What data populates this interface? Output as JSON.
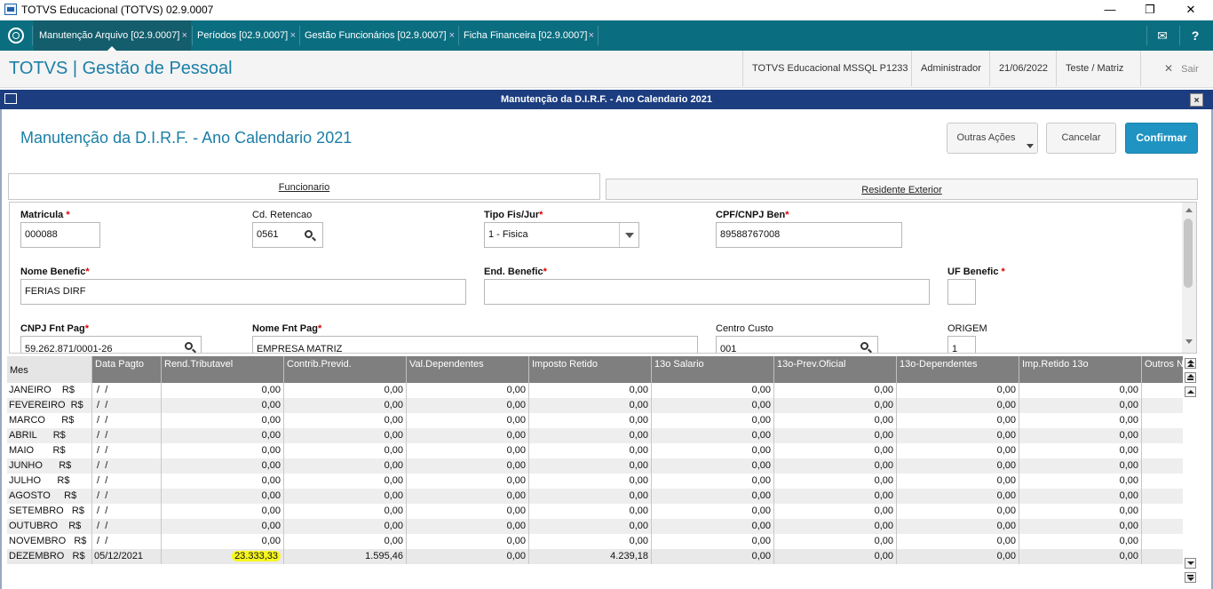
{
  "window": {
    "title": "TOTVS Educacional (TOTVS) 02.9.0007",
    "minimize": "—",
    "restore": "❐",
    "close": "✕"
  },
  "tabs": [
    {
      "label": "Manutenção Arquivo [02.9.0007]",
      "close": "×"
    },
    {
      "label": "Períodos [02.9.0007]",
      "close": "×"
    },
    {
      "label": "Gestão Funcionários [02.9.0007]",
      "close": "×"
    },
    {
      "label": "Ficha Financeira [02.9.0007]",
      "close": "×"
    }
  ],
  "topbar_icons": {
    "mail": "✉",
    "help": "?"
  },
  "header": {
    "brand": "TOTVS | Gestão de Pessoal",
    "environment": "TOTVS Educacional MSSQL P1233",
    "user": "Administrador",
    "date": "21/06/2022",
    "branch": "Teste / Matriz",
    "exit_label": "Sair",
    "exit_icon": "✕"
  },
  "dialog": {
    "title": "Manutenção da D.I.R.F. - Ano Calendario 2021",
    "page_title": "Manutenção da D.I.R.F. - Ano Calendario 2021",
    "close": "×",
    "buttons": {
      "other_actions": "Outras Ações",
      "cancel": "Cancelar",
      "confirm": "Confirmar"
    },
    "folder_tabs": [
      "Funcionario",
      "Residente Exterior"
    ]
  },
  "form": {
    "matricula": {
      "label": "Matricula",
      "required": "*",
      "value": "000088"
    },
    "cd_retencao": {
      "label": "Cd. Retencao",
      "value": "0561"
    },
    "tipo_fis_jur": {
      "label": "Tipo Fis/Jur",
      "required": "*",
      "value": "1 - Fisica"
    },
    "cpf_cnpj": {
      "label": "CPF/CNPJ Ben",
      "required": "*",
      "value": "89588767008"
    },
    "nome_benefic": {
      "label": "Nome Benefic",
      "required": "*",
      "value": "FERIAS DIRF"
    },
    "end_benefic": {
      "label": "End. Benefic",
      "required": "*",
      "value": ""
    },
    "uf_benefic": {
      "label": "UF Benefic",
      "required": "*",
      "value": ""
    },
    "cnpj_fnt_pag": {
      "label": "CNPJ Fnt Pag",
      "required": "*",
      "value": "59.262.871/0001-26"
    },
    "nome_fnt_pag": {
      "label": "Nome Fnt Pag",
      "required": "*",
      "value": "EMPRESA MATRIZ"
    },
    "centro_custo": {
      "label": "Centro Custo",
      "value": "001"
    },
    "origem": {
      "label": "ORIGEM",
      "value": "1"
    }
  },
  "grid": {
    "columns": [
      "Mes",
      "Data Pagto",
      "Rend.Tributavel",
      "Contrib.Previd.",
      "Val.Dependentes",
      "Imposto Retido",
      "13o  Salario",
      "13o-Prev.Oficial",
      "13o-Dependentes",
      "Imp.Retido 13o",
      "Outros N"
    ],
    "rows": [
      [
        "JANEIRO    R$",
        " /  /",
        "0,00",
        "0,00",
        "0,00",
        "0,00",
        "0,00",
        "0,00",
        "0,00",
        "0,00"
      ],
      [
        "FEVEREIRO  R$",
        " /  /",
        "0,00",
        "0,00",
        "0,00",
        "0,00",
        "0,00",
        "0,00",
        "0,00",
        "0,00"
      ],
      [
        "MARCO      R$",
        " /  /",
        "0,00",
        "0,00",
        "0,00",
        "0,00",
        "0,00",
        "0,00",
        "0,00",
        "0,00"
      ],
      [
        "ABRIL      R$",
        " /  /",
        "0,00",
        "0,00",
        "0,00",
        "0,00",
        "0,00",
        "0,00",
        "0,00",
        "0,00"
      ],
      [
        "MAIO       R$",
        " /  /",
        "0,00",
        "0,00",
        "0,00",
        "0,00",
        "0,00",
        "0,00",
        "0,00",
        "0,00"
      ],
      [
        "JUNHO      R$",
        " /  /",
        "0,00",
        "0,00",
        "0,00",
        "0,00",
        "0,00",
        "0,00",
        "0,00",
        "0,00"
      ],
      [
        "JULHO      R$",
        " /  /",
        "0,00",
        "0,00",
        "0,00",
        "0,00",
        "0,00",
        "0,00",
        "0,00",
        "0,00"
      ],
      [
        "AGOSTO     R$",
        " /  /",
        "0,00",
        "0,00",
        "0,00",
        "0,00",
        "0,00",
        "0,00",
        "0,00",
        "0,00"
      ],
      [
        "SETEMBRO   R$",
        " /  /",
        "0,00",
        "0,00",
        "0,00",
        "0,00",
        "0,00",
        "0,00",
        "0,00",
        "0,00"
      ],
      [
        "OUTUBRO    R$",
        " /  /",
        "0,00",
        "0,00",
        "0,00",
        "0,00",
        "0,00",
        "0,00",
        "0,00",
        "0,00"
      ],
      [
        "NOVEMBRO   R$",
        " /  /",
        "0,00",
        "0,00",
        "0,00",
        "0,00",
        "0,00",
        "0,00",
        "0,00",
        "0,00"
      ],
      [
        "DEZEMBRO   R$",
        "05/12/2021",
        "23.333,33",
        "1.595,46",
        "0,00",
        "4.239,18",
        "0,00",
        "0,00",
        "0,00",
        "0,00"
      ]
    ],
    "highlighted_cell": {
      "row": 11,
      "col": 2,
      "color": "#f7f720"
    }
  },
  "colors": {
    "tabbar": "#0b6e80",
    "dialog_bar": "#1c3d80",
    "brand": "#1b7fa7",
    "confirm": "#1f93c2",
    "grid_header": "#7f7f7f"
  }
}
